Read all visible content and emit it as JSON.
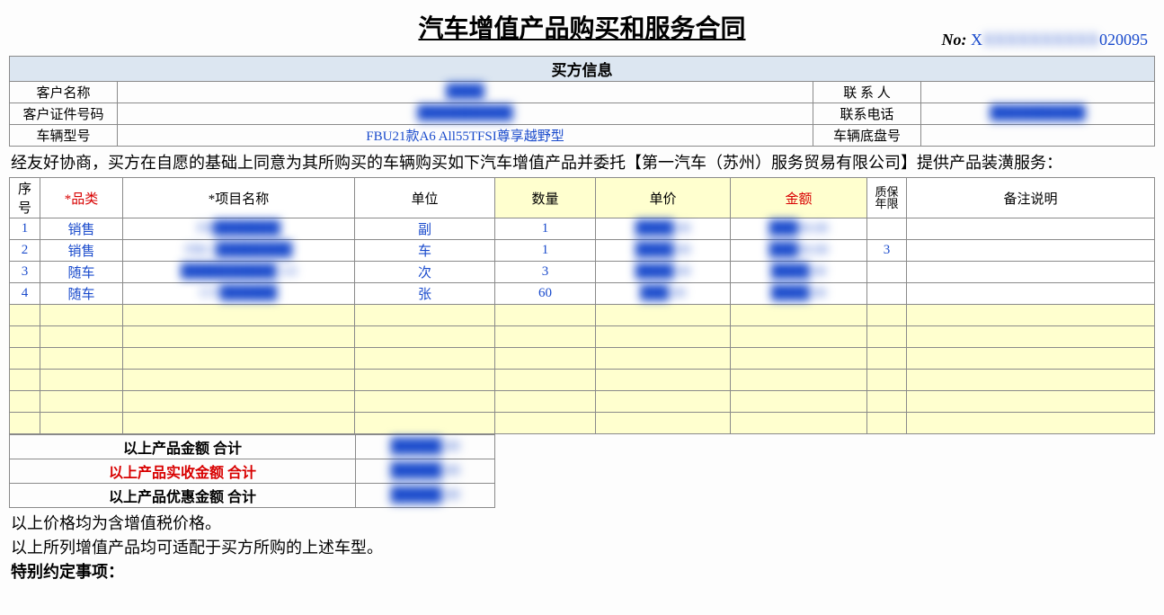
{
  "title": "汽车增值产品购买和服务合同",
  "number": {
    "label": "No:",
    "prefix": "X",
    "masked": "XXXXXXXXXX",
    "suffix": "020095"
  },
  "buyer": {
    "header": "买方信息",
    "r1_l1": "客户名称",
    "r1_v1": "████",
    "r1_l2": "联 系 人",
    "r1_v2": "",
    "r2_l1": "客户证件号码",
    "r2_v1": "██████████",
    "r2_l2": "联系电话",
    "r2_v2": "██████████",
    "r3_l1": "车辆型号",
    "r3_v1": "FBU21款A6 All55TFSI尊享越野型",
    "r3_l2": "车辆底盘号",
    "r3_v2": ""
  },
  "para1": "经友好协商，买方在自愿的基础上同意为其所购买的车辆购买如下汽车增值产品并委托【第一汽车（苏州）服务贸易有限公司】提供产品装潢服务：",
  "items_header": {
    "seq": "序号",
    "cat": "*品类",
    "name": "*项目名称",
    "unit": "单位",
    "qty": "数量",
    "price": "单价",
    "amount": "金额",
    "warranty": "质保年限",
    "remark": "备注说明"
  },
  "rows": [
    {
      "seq": "1",
      "cat": "销售",
      "name": "FB███████",
      "unit": "副",
      "qty": "1",
      "price": "████.00",
      "amount": "███00.00",
      "warranty": "",
      "remark": ""
    },
    {
      "seq": "2",
      "cat": "销售",
      "name": "FBU-████████",
      "unit": "车",
      "qty": "1",
      "price": "████.00",
      "amount": "███00.00",
      "warranty": "3",
      "remark": ""
    },
    {
      "seq": "3",
      "cat": "随车",
      "name": "██████████ 3.0",
      "unit": "次",
      "qty": "3",
      "price": "████.00",
      "amount": "████.00",
      "warranty": "",
      "remark": ""
    },
    {
      "seq": "4",
      "cat": "随车",
      "name": "GV██████",
      "unit": "张",
      "qty": "60",
      "price": "███.00",
      "amount": "████.00",
      "warranty": "",
      "remark": ""
    }
  ],
  "empty_rows": 6,
  "summary": {
    "s1_label": "以上产品金额 合计",
    "s1_val": "█████.00",
    "s2_label": "以上产品实收金额 合计",
    "s2_val": "█████.00",
    "s3_label": "以上产品优惠金额 合计",
    "s3_val": "█████.00"
  },
  "footer": {
    "l1": "以上价格均为含增值税价格。",
    "l2": "以上所列增值产品均可适配于买方所购的上述车型。",
    "l3": "特别约定事项："
  }
}
